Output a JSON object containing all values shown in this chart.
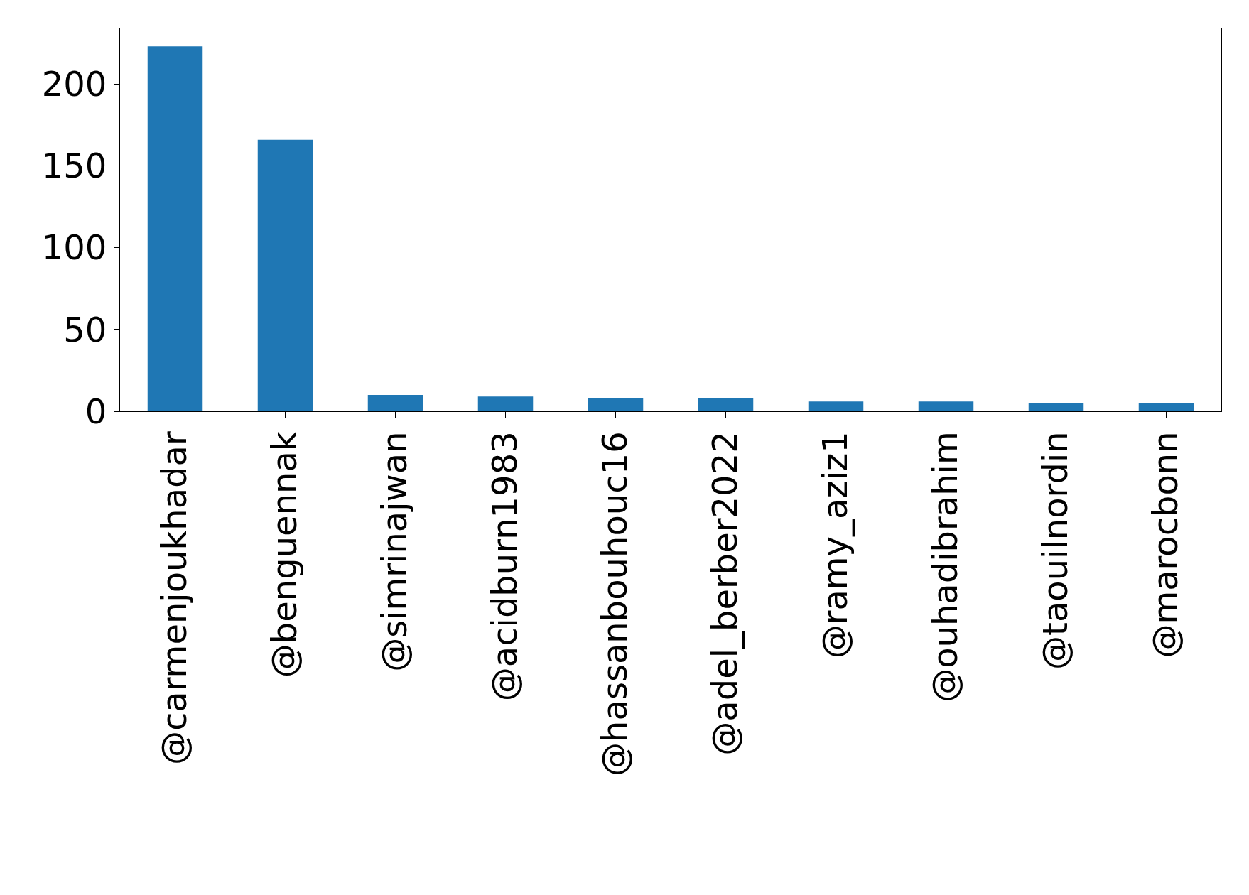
{
  "chart_data": {
    "type": "bar",
    "categories": [
      "@carmenjoukhadar",
      "@benguennak",
      "@simrinajwan",
      "@acidburn1983",
      "@hassanbouhouc16",
      "@adel_berber2022",
      "@ramy_aziz1",
      "@ouhadibrahim",
      "@taouilnordin",
      "@marocbonn"
    ],
    "values": [
      223,
      166,
      10,
      9,
      8,
      8,
      6,
      6,
      5,
      5
    ],
    "color": "#1f77b4",
    "ylim": [
      0,
      234
    ],
    "yticks": [
      0,
      50,
      100,
      150,
      200
    ],
    "grid": false,
    "legend": false
  }
}
